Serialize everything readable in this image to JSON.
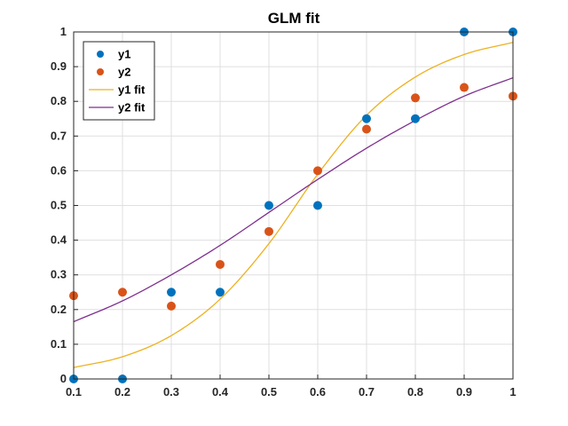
{
  "chart_data": {
    "type": "scatter",
    "title": "GLM fit",
    "xlabel": "",
    "ylabel": "",
    "xlim": [
      0.1,
      1.0
    ],
    "ylim": [
      0,
      1.0
    ],
    "xticks": [
      "0.1",
      "0.2",
      "0.3",
      "0.4",
      "0.5",
      "0.6",
      "0.7",
      "0.8",
      "0.9",
      "1"
    ],
    "yticks": [
      "0",
      "0.1",
      "0.2",
      "0.3",
      "0.4",
      "0.5",
      "0.6",
      "0.7",
      "0.8",
      "0.9",
      "1"
    ],
    "grid": true,
    "legend_position": "top-left",
    "series": [
      {
        "name": "y1",
        "kind": "points",
        "color": "#0072BD",
        "x": [
          0.1,
          0.2,
          0.3,
          0.4,
          0.5,
          0.6,
          0.7,
          0.8,
          0.9,
          1.0
        ],
        "y": [
          0.0,
          0.0,
          0.25,
          0.25,
          0.5,
          0.5,
          0.75,
          0.75,
          1.0,
          1.0
        ]
      },
      {
        "name": "y2",
        "kind": "points",
        "color": "#D95319",
        "x": [
          0.1,
          0.2,
          0.3,
          0.4,
          0.5,
          0.6,
          0.7,
          0.8,
          0.9,
          1.0
        ],
        "y": [
          0.24,
          0.25,
          0.21,
          0.33,
          0.425,
          0.6,
          0.72,
          0.81,
          0.84,
          0.815
        ]
      },
      {
        "name": "y1 fit",
        "kind": "line",
        "color": "#EDB120",
        "x": [
          0.1,
          0.2,
          0.3,
          0.4,
          0.5,
          0.6,
          0.7,
          0.8,
          0.9,
          1.0
        ],
        "y": [
          0.033,
          0.064,
          0.125,
          0.23,
          0.39,
          0.59,
          0.76,
          0.87,
          0.935,
          0.97
        ]
      },
      {
        "name": "y2 fit",
        "kind": "line",
        "color": "#7E2F8E",
        "x": [
          0.1,
          0.2,
          0.3,
          0.4,
          0.5,
          0.6,
          0.7,
          0.8,
          0.9,
          1.0
        ],
        "y": [
          0.165,
          0.225,
          0.3,
          0.385,
          0.48,
          0.575,
          0.665,
          0.745,
          0.815,
          0.868
        ]
      }
    ]
  }
}
